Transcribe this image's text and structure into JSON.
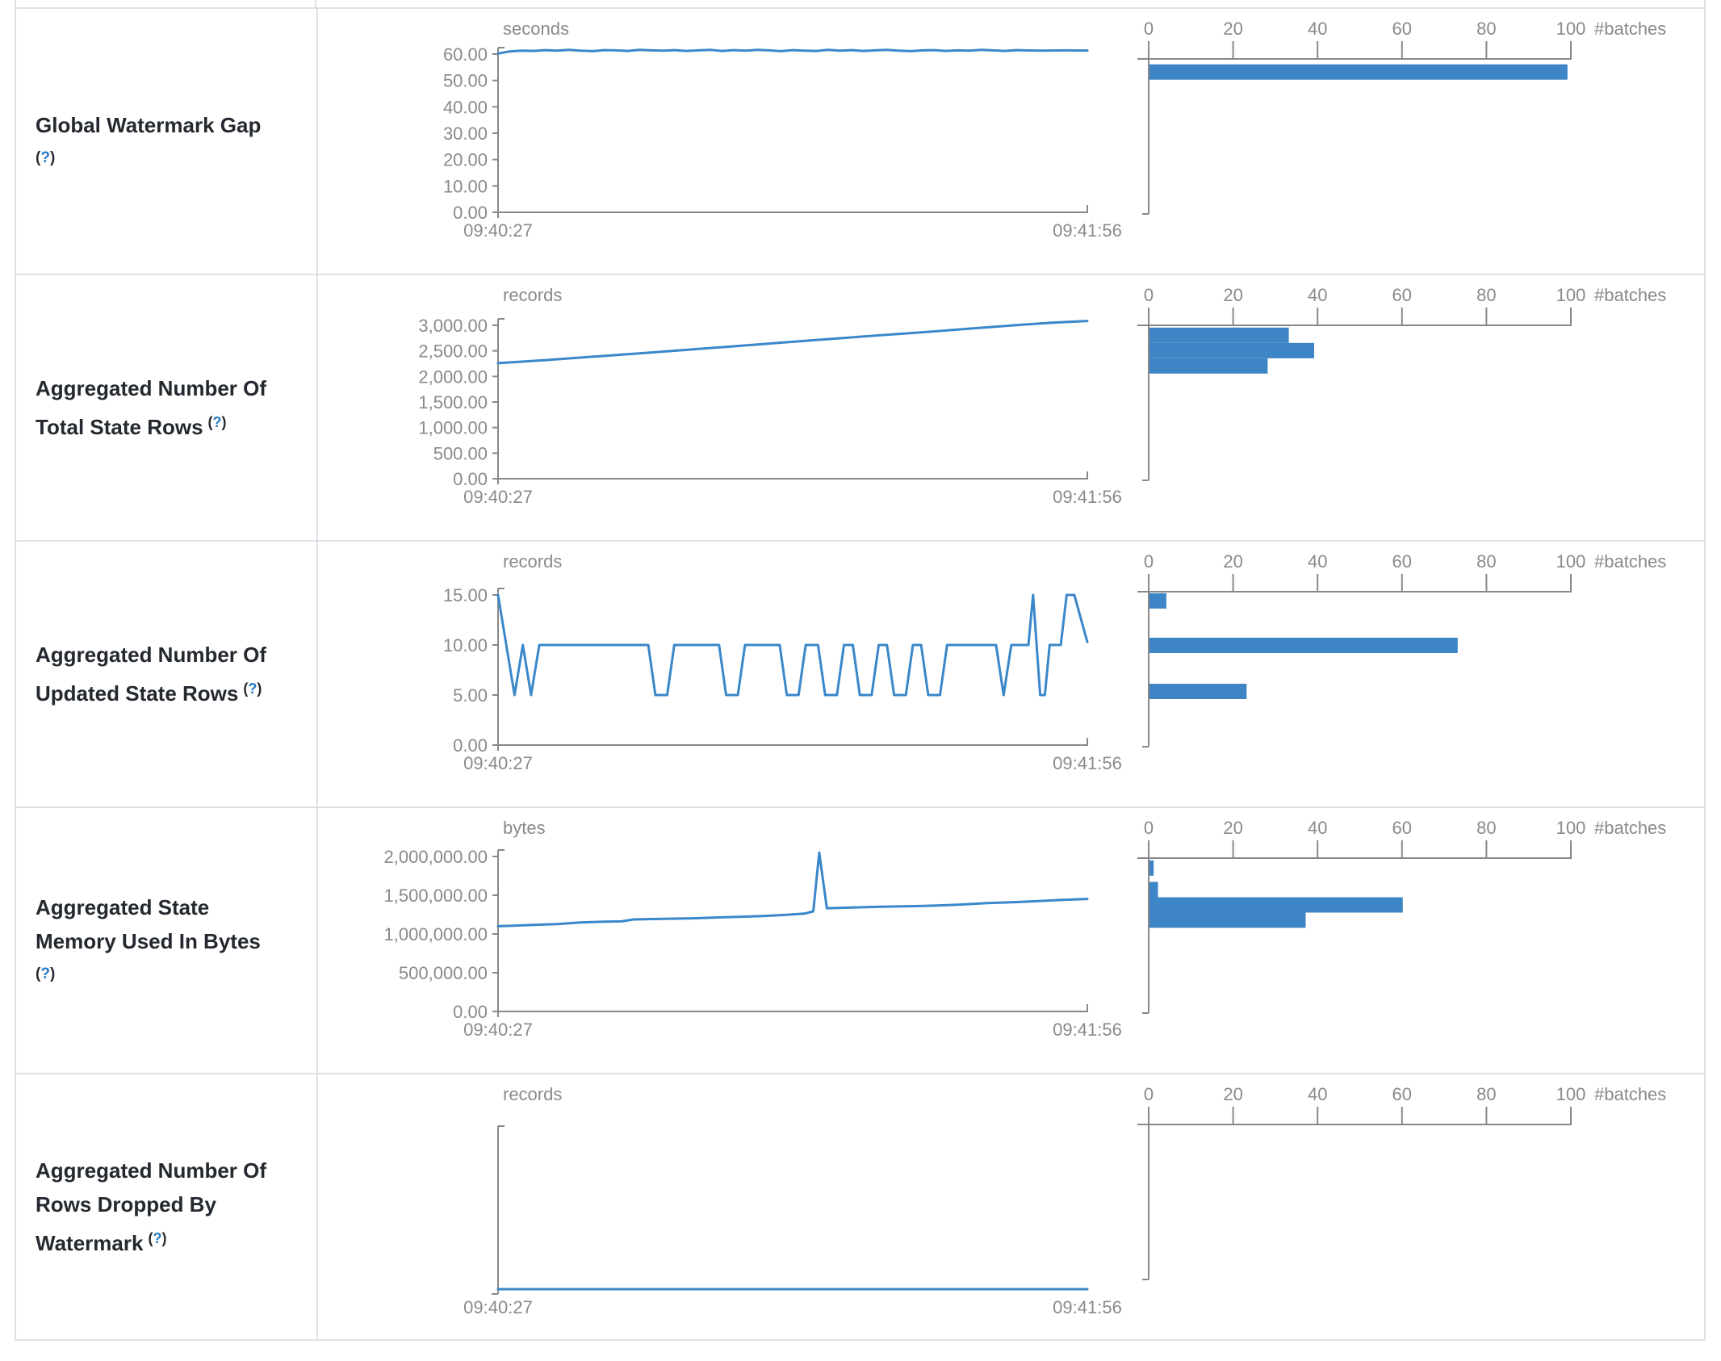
{
  "palette": {
    "line": "#3a87ca",
    "bar": "#3d85c5",
    "axis": "#888888",
    "axis_text": "#8a8a8a",
    "label_text": "#24292f",
    "help": "#2779c7",
    "border": "#dde1e6"
  },
  "x_axis": {
    "start_label": "09:40:27",
    "end_label": "09:41:56"
  },
  "histogram_axis": {
    "tick_labels": [
      "0",
      "20",
      "40",
      "60",
      "80",
      "100"
    ],
    "tick_values": [
      0,
      20,
      40,
      60,
      80,
      100
    ],
    "unit_label": "#batches",
    "max": 100
  },
  "rows": [
    {
      "id": "global-watermark-gap",
      "label_lines": [
        "Global Watermark Gap"
      ],
      "help": {
        "open": "(",
        "q": "?",
        "close": ")"
      },
      "help_own_line": true,
      "chart_data": {
        "type": "line",
        "unit": "seconds",
        "title": "Global Watermark Gap timeline",
        "ylim": [
          0,
          60
        ],
        "y_ticks": [
          {
            "v": 60,
            "label": "60.00"
          },
          {
            "v": 50,
            "label": "50.00"
          },
          {
            "v": 40,
            "label": "40.00"
          },
          {
            "v": 30,
            "label": "30.00"
          },
          {
            "v": 20,
            "label": "20.00"
          },
          {
            "v": 10,
            "label": "10.00"
          },
          {
            "v": 0,
            "label": "0.00"
          }
        ],
        "x_range": [
          "09:40:27",
          "09:41:56"
        ],
        "points": [
          [
            0,
            60.2
          ],
          [
            0.02,
            61.0
          ],
          [
            0.04,
            61.3
          ],
          [
            0.06,
            61.2
          ],
          [
            0.08,
            61.5
          ],
          [
            0.1,
            61.3
          ],
          [
            0.12,
            61.6
          ],
          [
            0.14,
            61.3
          ],
          [
            0.16,
            61.1
          ],
          [
            0.18,
            61.5
          ],
          [
            0.2,
            61.4
          ],
          [
            0.22,
            61.2
          ],
          [
            0.24,
            61.6
          ],
          [
            0.26,
            61.4
          ],
          [
            0.28,
            61.3
          ],
          [
            0.3,
            61.5
          ],
          [
            0.32,
            61.2
          ],
          [
            0.34,
            61.4
          ],
          [
            0.36,
            61.6
          ],
          [
            0.38,
            61.2
          ],
          [
            0.4,
            61.5
          ],
          [
            0.42,
            61.3
          ],
          [
            0.44,
            61.6
          ],
          [
            0.46,
            61.4
          ],
          [
            0.48,
            61.1
          ],
          [
            0.5,
            61.5
          ],
          [
            0.52,
            61.3
          ],
          [
            0.54,
            61.2
          ],
          [
            0.56,
            61.6
          ],
          [
            0.58,
            61.3
          ],
          [
            0.6,
            61.5
          ],
          [
            0.62,
            61.2
          ],
          [
            0.64,
            61.4
          ],
          [
            0.66,
            61.6
          ],
          [
            0.68,
            61.3
          ],
          [
            0.7,
            61.1
          ],
          [
            0.72,
            61.4
          ],
          [
            0.74,
            61.5
          ],
          [
            0.76,
            61.2
          ],
          [
            0.78,
            61.4
          ],
          [
            0.8,
            61.3
          ],
          [
            0.82,
            61.6
          ],
          [
            0.84,
            61.4
          ],
          [
            0.86,
            61.2
          ],
          [
            0.88,
            61.5
          ],
          [
            0.92,
            61.3
          ],
          [
            0.96,
            61.4
          ],
          [
            1,
            61.35
          ]
        ]
      },
      "hist_data": {
        "type": "bar",
        "orientation": "horizontal",
        "xlabel": "#batches",
        "bars": [
          {
            "count": 99,
            "pos_frac": 0.035
          }
        ]
      }
    },
    {
      "id": "total-state-rows",
      "label_lines": [
        "Aggregated Number Of",
        "Total State Rows"
      ],
      "help": {
        "open": "(",
        "q": "?",
        "close": ")"
      },
      "help_own_line": false,
      "chart_data": {
        "type": "line",
        "unit": "records",
        "title": "Aggregated Number Of Total State Rows timeline",
        "ylim": [
          0,
          3000
        ],
        "y_ticks": [
          {
            "v": 3000,
            "label": "3,000.00"
          },
          {
            "v": 2500,
            "label": "2,500.00"
          },
          {
            "v": 2000,
            "label": "2,000.00"
          },
          {
            "v": 1500,
            "label": "1,500.00"
          },
          {
            "v": 1000,
            "label": "1,000.00"
          },
          {
            "v": 500,
            "label": "500.00"
          },
          {
            "v": 0,
            "label": "0.00"
          }
        ],
        "x_range": [
          "09:40:27",
          "09:41:56"
        ],
        "points": [
          [
            0,
            2260
          ],
          [
            0.08,
            2320
          ],
          [
            0.16,
            2385
          ],
          [
            0.24,
            2450
          ],
          [
            0.32,
            2520
          ],
          [
            0.4,
            2590
          ],
          [
            0.48,
            2660
          ],
          [
            0.56,
            2730
          ],
          [
            0.64,
            2800
          ],
          [
            0.72,
            2865
          ],
          [
            0.8,
            2935
          ],
          [
            0.88,
            3005
          ],
          [
            0.94,
            3050
          ],
          [
            1,
            3085
          ]
        ]
      },
      "hist_data": {
        "type": "bar",
        "orientation": "horizontal",
        "xlabel": "#batches",
        "bars": [
          {
            "count": 33,
            "pos_frac": 0.015
          },
          {
            "count": 39,
            "pos_frac": 0.115
          },
          {
            "count": 28,
            "pos_frac": 0.215
          }
        ]
      }
    },
    {
      "id": "updated-state-rows",
      "label_lines": [
        "Aggregated Number Of",
        "Updated State Rows"
      ],
      "help": {
        "open": "(",
        "q": "?",
        "close": ")"
      },
      "help_own_line": false,
      "chart_data": {
        "type": "line",
        "unit": "records",
        "title": "Aggregated Number Of Updated State Rows timeline",
        "ylim": [
          0,
          15
        ],
        "y_ticks": [
          {
            "v": 15,
            "label": "15.00"
          },
          {
            "v": 10,
            "label": "10.00"
          },
          {
            "v": 5,
            "label": "5.00"
          },
          {
            "v": 0,
            "label": "0.00"
          }
        ],
        "x_range": [
          "09:40:27",
          "09:41:56"
        ],
        "points": [
          [
            0,
            15
          ],
          [
            0.028,
            5
          ],
          [
            0.042,
            10
          ],
          [
            0.056,
            5
          ],
          [
            0.07,
            10
          ],
          [
            0.255,
            10
          ],
          [
            0.267,
            5
          ],
          [
            0.287,
            5
          ],
          [
            0.299,
            10
          ],
          [
            0.375,
            10
          ],
          [
            0.387,
            5
          ],
          [
            0.407,
            5
          ],
          [
            0.419,
            10
          ],
          [
            0.478,
            10
          ],
          [
            0.49,
            5
          ],
          [
            0.51,
            5
          ],
          [
            0.522,
            10
          ],
          [
            0.543,
            10
          ],
          [
            0.555,
            5
          ],
          [
            0.575,
            5
          ],
          [
            0.587,
            10
          ],
          [
            0.602,
            10
          ],
          [
            0.614,
            5
          ],
          [
            0.634,
            5
          ],
          [
            0.646,
            10
          ],
          [
            0.66,
            10
          ],
          [
            0.672,
            5
          ],
          [
            0.692,
            5
          ],
          [
            0.704,
            10
          ],
          [
            0.718,
            10
          ],
          [
            0.73,
            5
          ],
          [
            0.75,
            5
          ],
          [
            0.762,
            10
          ],
          [
            0.845,
            10
          ],
          [
            0.858,
            5
          ],
          [
            0.871,
            10
          ],
          [
            0.9,
            10
          ],
          [
            0.908,
            15
          ],
          [
            0.92,
            5
          ],
          [
            0.928,
            5
          ],
          [
            0.936,
            10
          ],
          [
            0.955,
            10
          ],
          [
            0.965,
            15
          ],
          [
            0.978,
            15
          ],
          [
            1,
            10.3
          ]
        ]
      },
      "hist_data": {
        "type": "bar",
        "orientation": "horizontal",
        "xlabel": "#batches",
        "bars": [
          {
            "count": 4,
            "pos_frac": 0.01
          },
          {
            "count": 73,
            "pos_frac": 0.3
          },
          {
            "count": 23,
            "pos_frac": 0.6
          }
        ]
      }
    },
    {
      "id": "state-memory-bytes",
      "label_lines": [
        "Aggregated State",
        "Memory Used In Bytes"
      ],
      "help": {
        "open": "(",
        "q": "?",
        "close": ")"
      },
      "help_own_line": true,
      "chart_data": {
        "type": "line",
        "unit": "bytes",
        "title": "Aggregated State Memory Used In Bytes timeline",
        "ylim": [
          0,
          2000000
        ],
        "y_ticks": [
          {
            "v": 2000000,
            "label": "2,000,000.00"
          },
          {
            "v": 1500000,
            "label": "1,500,000.00"
          },
          {
            "v": 1000000,
            "label": "1,000,000.00"
          },
          {
            "v": 500000,
            "label": "500,000.00"
          },
          {
            "v": 0,
            "label": "0.00"
          }
        ],
        "x_range": [
          "09:40:27",
          "09:41:56"
        ],
        "points": [
          [
            0,
            1100000
          ],
          [
            0.03,
            1108000
          ],
          [
            0.06,
            1118000
          ],
          [
            0.1,
            1128000
          ],
          [
            0.14,
            1148000
          ],
          [
            0.18,
            1158000
          ],
          [
            0.21,
            1162000
          ],
          [
            0.23,
            1188000
          ],
          [
            0.28,
            1196000
          ],
          [
            0.33,
            1202000
          ],
          [
            0.37,
            1212000
          ],
          [
            0.41,
            1222000
          ],
          [
            0.45,
            1232000
          ],
          [
            0.49,
            1248000
          ],
          [
            0.52,
            1262000
          ],
          [
            0.535,
            1292000
          ],
          [
            0.545,
            2050000
          ],
          [
            0.558,
            1332000
          ],
          [
            0.6,
            1342000
          ],
          [
            0.65,
            1352000
          ],
          [
            0.7,
            1358000
          ],
          [
            0.74,
            1366000
          ],
          [
            0.78,
            1378000
          ],
          [
            0.83,
            1398000
          ],
          [
            0.87,
            1408000
          ],
          [
            0.91,
            1422000
          ],
          [
            0.95,
            1438000
          ],
          [
            1,
            1452000
          ]
        ]
      },
      "hist_data": {
        "type": "bar",
        "orientation": "horizontal",
        "xlabel": "#batches",
        "bars": [
          {
            "count": 1,
            "pos_frac": 0.015
          },
          {
            "count": 2,
            "pos_frac": 0.155
          },
          {
            "count": 60,
            "pos_frac": 0.255
          },
          {
            "count": 37,
            "pos_frac": 0.355
          }
        ]
      }
    },
    {
      "id": "rows-dropped-by-watermark",
      "label_lines": [
        "Aggregated Number Of",
        "Rows Dropped By",
        "Watermark"
      ],
      "help": {
        "open": "(",
        "q": "?",
        "close": ")"
      },
      "help_own_line": false,
      "chart_data": {
        "type": "line",
        "unit": "records",
        "title": "Aggregated Number Of Rows Dropped By Watermark timeline",
        "ylim": [
          0,
          1
        ],
        "y_ticks": [],
        "x_range": [
          "09:40:27",
          "09:41:56"
        ],
        "points": [
          [
            0,
            0
          ],
          [
            1,
            0
          ]
        ]
      },
      "hist_data": {
        "type": "bar",
        "orientation": "horizontal",
        "xlabel": "#batches",
        "bars": []
      }
    }
  ]
}
